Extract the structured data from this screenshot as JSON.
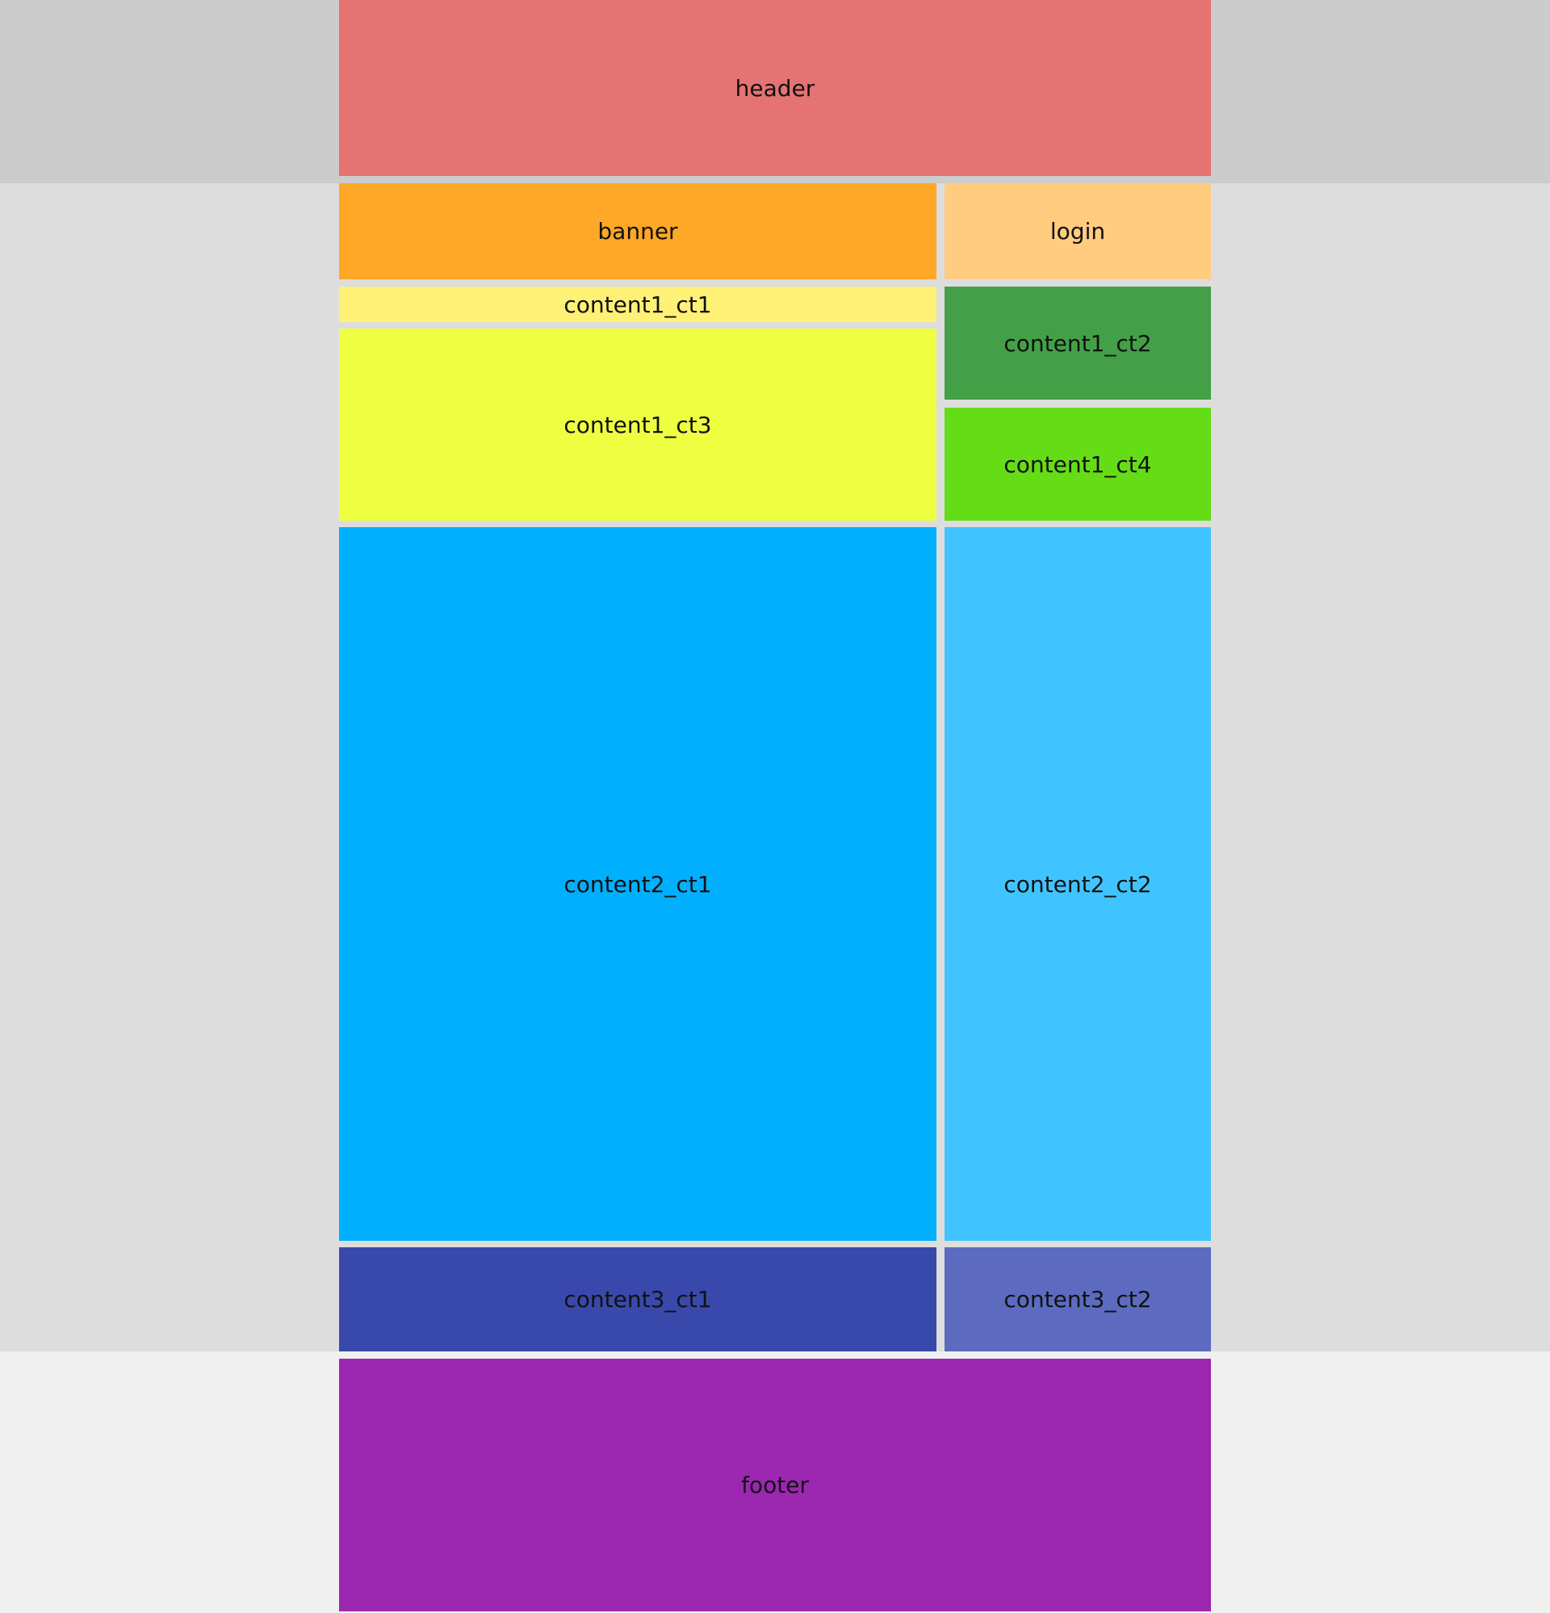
{
  "blocks": {
    "header": {
      "label": "header",
      "color": "#e57373"
    },
    "banner": {
      "label": "banner",
      "color": "#ffa726"
    },
    "login": {
      "label": "login",
      "color": "#ffcc80"
    },
    "content1_ct1": {
      "label": "content1_ct1",
      "color": "#fff176"
    },
    "content1_ct2": {
      "label": "content1_ct2",
      "color": "#43a047"
    },
    "content1_ct3": {
      "label": "content1_ct3",
      "color": "#eeff41"
    },
    "content1_ct4": {
      "label": "content1_ct4",
      "color": "#64dd17"
    },
    "content2_ct1": {
      "label": "content2_ct1",
      "color": "#00b0ff"
    },
    "content2_ct2": {
      "label": "content2_ct2",
      "color": "#40c4ff"
    },
    "content3_ct1": {
      "label": "content3_ct1",
      "color": "#3949ab"
    },
    "content3_ct2": {
      "label": "content3_ct2",
      "color": "#5c6bc0"
    },
    "footer": {
      "label": "footer",
      "color": "#9c27b0"
    }
  },
  "background": {
    "top": "#cccccc",
    "middle": "#dddddd",
    "bottom": "#f0f0f0"
  }
}
